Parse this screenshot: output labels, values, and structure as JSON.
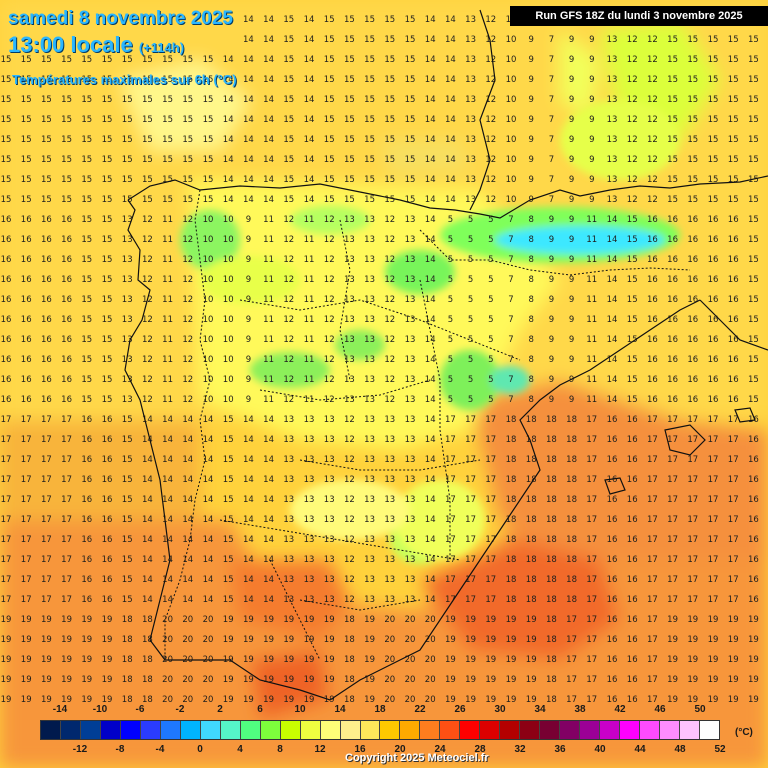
{
  "header": {
    "date": "samedi 8 novembre 2025",
    "time": "13:00 locale",
    "lead": "(+114h)",
    "product": "Températures maximales sur 6h (°C)",
    "run": "Run GFS 18Z du lundi 3 novembre 2025"
  },
  "legend": {
    "upper_labels": [
      "-14",
      "-10",
      "-6",
      "-2",
      "2",
      "6",
      "10",
      "14",
      "18",
      "22",
      "26",
      "30",
      "34",
      "38",
      "42",
      "46",
      "50"
    ],
    "lower_labels": [
      "-12",
      "-8",
      "-4",
      "0",
      "4",
      "8",
      "12",
      "16",
      "20",
      "24",
      "28",
      "32",
      "36",
      "40",
      "44",
      "48",
      "52"
    ],
    "unit": "(°C)",
    "colors": [
      "#001a4d",
      "#00286e",
      "#003e96",
      "#0000c8",
      "#0000ff",
      "#2a3cff",
      "#1e78ff",
      "#00b4ff",
      "#40d8ff",
      "#55f5c8",
      "#50ff80",
      "#7dff3c",
      "#c8ff00",
      "#f0ff40",
      "#ffff78",
      "#fff08c",
      "#ffe65a",
      "#ffc800",
      "#ffaa00",
      "#ff7d1e",
      "#ff5014",
      "#ff0000",
      "#dc0000",
      "#b40000",
      "#8c0014",
      "#780032",
      "#820064",
      "#9b0096",
      "#c800c8",
      "#ff00ff",
      "#ff4bff",
      "#ff8cff",
      "#ffc3ff",
      "#ffffff"
    ]
  },
  "footer": {
    "copyright": "Copyright 2025 Meteociel.fr"
  },
  "map": {
    "region": "Péninsule Ibérique",
    "sample_rows": [
      "15 15 15 15 15 15 15 15 15 15 15 14 14 14 15 14 15 15 15 15 15 14 14 13 12 10 9 7 9 9 13 12 12",
      "16 16 16 16 15 15 13 12 11 12 10 10 9 11 12 11 12 13 13 12 13 14 5 5 5 7 8 9 9 11 14 15 16",
      "17 17 17 17 16 16 15 14 14 14 14 15 14 14 13 13 13 12 13 13 13 14 17 17 17 18 18 18 18 17 16 16 17",
      "19 19 19 19 19 19 18 18 20 20 20 19 19 19 19 19 19 18 19 20 20 20 19 19 19 19 19 18 17 17 16 16 17"
    ]
  }
}
